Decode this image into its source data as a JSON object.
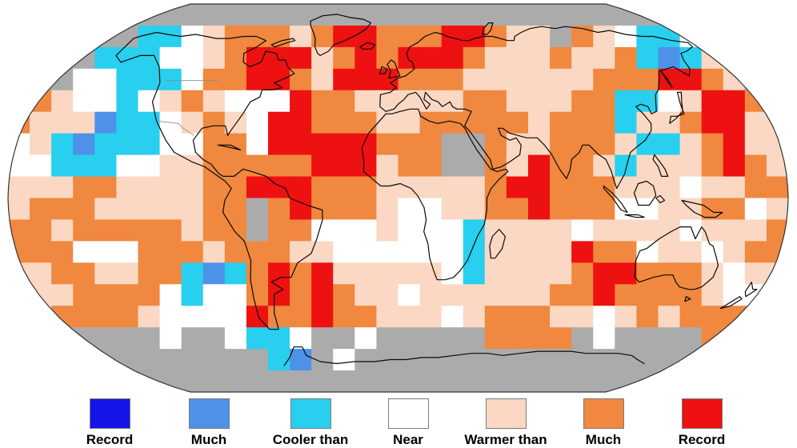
{
  "map": {
    "description": "Gridded global land and ocean temperature percentile map, Robinson projection",
    "palette": {
      "G": "#ababab",
      "W": "#ffffff",
      "P": "#fad8c3",
      "O": "#f0883f",
      "R": "#ee1111",
      "C": "#29cfee",
      "B": "#4d92e8",
      "D": "#1414e6"
    },
    "palette_meaning": {
      "G": "no-data gray",
      "W": "near average",
      "P": "warmer than average",
      "O": "much warmer than average",
      "R": "record warmest",
      "C": "cooler than average",
      "B": "much cooler than average",
      "D": "record coldest"
    },
    "grid": {
      "cols": 36,
      "rows": 18,
      "rows_data": [
        "GGGGGGGGGGGGGGGGGGGGGGGGGGGGGGGGGGGG",
        "GGGGGGCCWPOOOPORROOORROPPGOPWCCWWWCB",
        "GGGGCCCWWPORRRPORORRROPPPOPPOCBCPWCB",
        "GGGWWCCCWOORROPRRROOOPPPPPPOOORROPCC",
        "GOPWWCWPOPWWWROOPPPPPOOPPPOOCCWPRROO",
        "OPPPBCCWPOPWRROOOPPOOOOOPOOOCPPORRPP",
        "WPCBCCCWWOOWRRRRROOOGGOPPOOOPCCPORPP",
        "WWCCCWWPPOOOOORRRPOOGGOPROOPCPPPOROP",
        "PPPOOPPPPOORRROOOPPPPPORROOOPPPWPPOO",
        "POOOPPPPPOOGOROOOPWWPPOOROOOWWPPOOWP",
        "OOPOOOOOPOOGOOWWWPWWWCPPPPWPPPPWPPPO",
        "OOOWWWOOOPOOOPPWWWWWWCPPPPROOWPPWPOO",
        "PPOOPPOOCBCORORPPPPPWCPPPPORROOOPWPP",
        "PPPOOOOWCWWOROROPPWPPPPPPOOROOOOPWWP",
        "WPOOOOPWWWWROOROOPPPWPOOOPPWPOPOOOOO",
        "GGGGGGGWGGWCCWGGWGGGGGOOOOGWGGGGOOOG",
        "GGGGGGGGGGGGCBGWGGGGGGGGGGGGGGGGGGGG",
        "GGGGGGGGGGGGGGGGGGGGGGGGGGGGGGGGGGGG"
      ]
    }
  },
  "legend": {
    "items": [
      {
        "code": "D",
        "label": "Record"
      },
      {
        "code": "B",
        "label": "Much"
      },
      {
        "code": "C",
        "label": "Cooler than"
      },
      {
        "code": "W",
        "label": "Near"
      },
      {
        "code": "P",
        "label": "Warmer than"
      },
      {
        "code": "O",
        "label": "Much"
      },
      {
        "code": "R",
        "label": "Record"
      }
    ],
    "centers": [
      137,
      261,
      388,
      510,
      632,
      754,
      877
    ]
  }
}
